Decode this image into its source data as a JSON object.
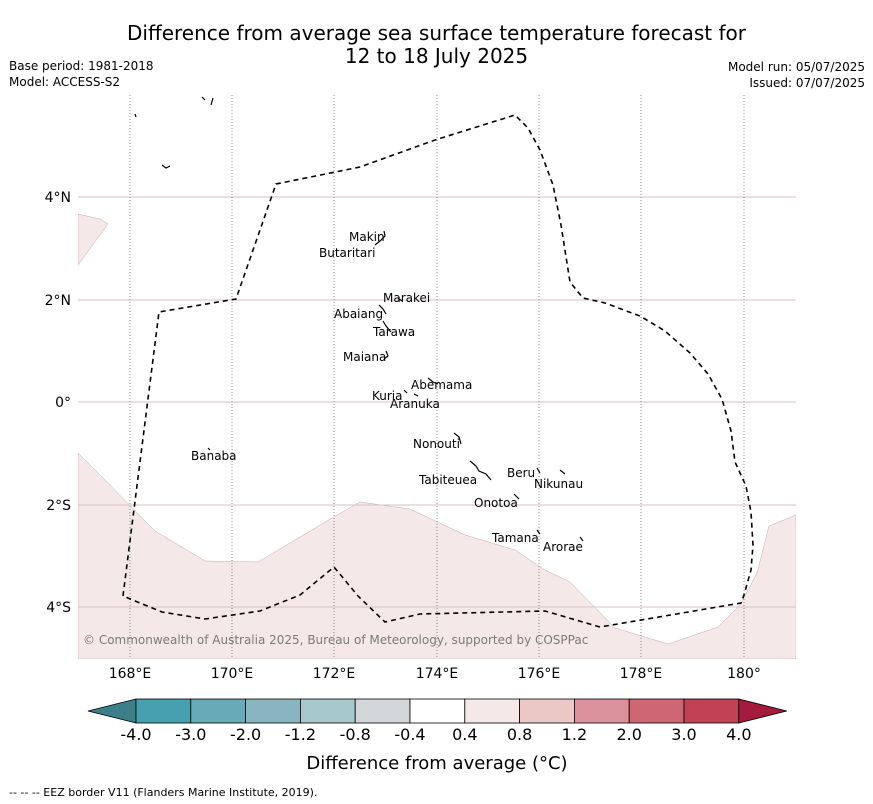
{
  "title": {
    "line1": "Difference from average sea surface temperature forecast for",
    "line2": "12 to 18 July 2025"
  },
  "meta_left": {
    "base_period": "Base period: 1981-2018",
    "model": "Model: ACCESS-S2"
  },
  "meta_right": {
    "model_run": "Model run: 05/07/2025",
    "issued": "Issued: 07/07/2025"
  },
  "map": {
    "lat_labels": [
      "4°N",
      "2°N",
      "0°",
      "2°S",
      "4°S"
    ],
    "lon_labels": [
      "168°E",
      "170°E",
      "172°E",
      "174°E",
      "176°E",
      "178°E",
      "180°"
    ],
    "islands": [
      "Makin",
      "Butaritari",
      "Marakei",
      "Abaiang",
      "Tarawa",
      "Maiana",
      "Abemama",
      "Kuria",
      "Aranuka",
      "Nonouti",
      "Banaba",
      "Tabiteuea",
      "Beru",
      "Nikunau",
      "Onotoa",
      "Tamana",
      "Arorae"
    ],
    "copyright": "© Commonwealth of Australia 2025, Bureau of Meteorology, supported by COSPPac",
    "eez_border": "dashed",
    "colors": {
      "warm_anomaly_fill": "#f5e8e8",
      "ocean_background": "#ffffff"
    }
  },
  "colorbar": {
    "labels": [
      "-4.0",
      "-3.0",
      "-2.0",
      "-1.2",
      "-0.8",
      "-0.4",
      "0.4",
      "0.8",
      "1.2",
      "2.0",
      "3.0",
      "4.0"
    ],
    "colors": [
      "#3c7f89",
      "#46a0ae",
      "#69aab7",
      "#88b5bf",
      "#a7c8cc",
      "#d2d6d8",
      "#ffffff",
      "#f5e8e8",
      "#ebc8c6",
      "#db9199",
      "#cf6673",
      "#c14252",
      "#a41b3c"
    ],
    "label": "Difference from average (°C)"
  },
  "footer": "-- -- -- EEZ border V11 (Flanders Marine Institute, 2019)."
}
